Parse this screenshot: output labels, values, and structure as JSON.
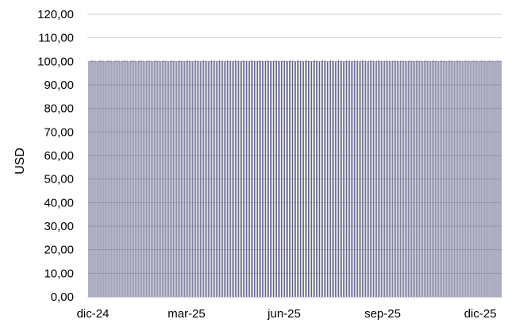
{
  "chart_data": {
    "type": "bar",
    "title": "",
    "xlabel": "",
    "ylabel": "USD",
    "ylim": [
      0,
      120
    ],
    "ytick_values": [
      0,
      10,
      20,
      30,
      40,
      50,
      60,
      70,
      80,
      90,
      100,
      110,
      120
    ],
    "yticks": [
      "0,00",
      "10,00",
      "20,00",
      "30,00",
      "40,00",
      "50,00",
      "60,00",
      "70,00",
      "80,00",
      "90,00",
      "100,00",
      "110,00",
      "120,00"
    ],
    "xticks": [
      "dic-24",
      "mar-25",
      "jun-25",
      "sep-25",
      "dic-25"
    ],
    "x_range": [
      "2024-12-01",
      "2025-12-31"
    ],
    "grid": true,
    "bar_count": 260,
    "series": [
      {
        "value_min": 100.0,
        "value_max": 100.4,
        "approx_value": 100.2
      }
    ],
    "colors": {
      "bar": "#4a4a7a",
      "grid": "#d0d0d0",
      "axis": "#c8c8c8"
    }
  }
}
